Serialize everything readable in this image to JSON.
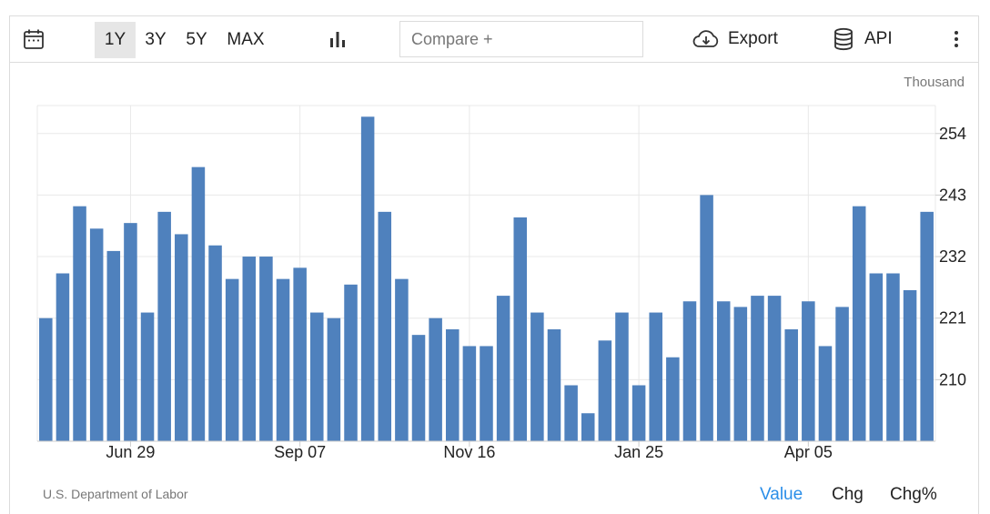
{
  "toolbar": {
    "ranges": [
      "1Y",
      "3Y",
      "5Y",
      "MAX"
    ],
    "active_range": "1Y",
    "compare_placeholder": "Compare +",
    "export_label": "Export",
    "api_label": "API",
    "icons": [
      "calendar-icon",
      "bar-chart-icon",
      "cloud-download-icon",
      "database-icon",
      "more-vert-icon"
    ]
  },
  "unit_label": "Thousand",
  "source": "U.S. Department of Labor",
  "view_tabs": [
    {
      "label": "Value",
      "active": true
    },
    {
      "label": "Chg",
      "active": false
    },
    {
      "label": "Chg%",
      "active": false
    }
  ],
  "colors": {
    "bar": "#4f81bd",
    "active_tab": "#2a8ee8",
    "grid": "#e8e8e8"
  },
  "chart_data": {
    "type": "bar",
    "ylim": [
      199,
      259
    ],
    "yticks": [
      210,
      221,
      232,
      243,
      254
    ],
    "xtick_labels": [
      {
        "label": "Jun 29",
        "index": 5
      },
      {
        "label": "Sep 07",
        "index": 15
      },
      {
        "label": "Nov 16",
        "index": 25
      },
      {
        "label": "Jan 25",
        "index": 35
      },
      {
        "label": "Apr 05",
        "index": 45
      }
    ],
    "values": [
      221,
      229,
      241,
      237,
      233,
      238,
      222,
      240,
      236,
      248,
      234,
      228,
      232,
      232,
      228,
      230,
      222,
      221,
      227,
      257,
      240,
      228,
      218,
      221,
      219,
      216,
      216,
      225,
      239,
      222,
      219,
      209,
      204,
      217,
      222,
      209,
      222,
      214,
      224,
      243,
      224,
      223,
      225,
      225,
      219,
      224,
      216,
      223,
      241,
      229,
      229,
      226,
      240
    ]
  }
}
